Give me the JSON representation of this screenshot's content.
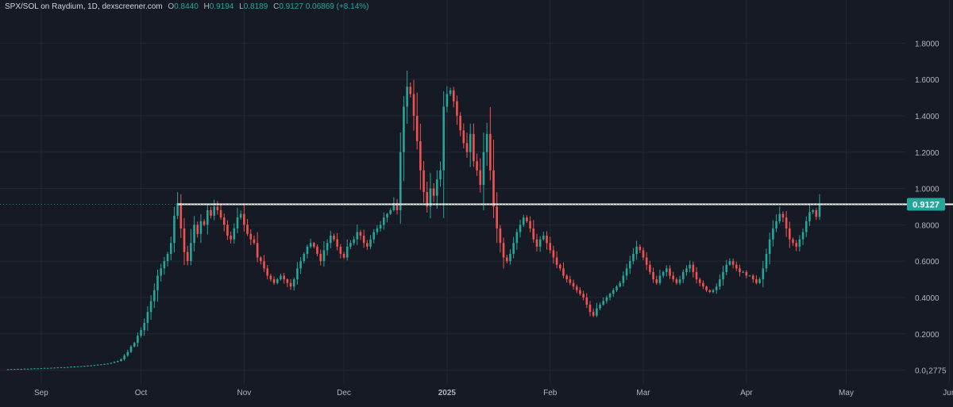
{
  "legend": {
    "symbol": "SPX/SOL on Raydium, 1D, dexscreener.com",
    "open_label": "O",
    "open": "0.8440",
    "high_label": "H",
    "high": "0.9194",
    "low_label": "L",
    "low": "0.8189",
    "close_label": "C",
    "close": "0.9127",
    "change": "0.06869 (+8.14%)"
  },
  "colors": {
    "background": "#161a25",
    "up": "#26a69a",
    "down": "#ef5350",
    "grid": "#232733",
    "axis_text": "#b2b5be",
    "price_badge": "#26a69a",
    "trendline": "#ffffff"
  },
  "chart_data": {
    "type": "candlestick",
    "y_ticks": [
      "1.8000",
      "1.6000",
      "1.4000",
      "1.2000",
      "1.0000",
      "0.8000",
      "0.6000",
      "0.4000",
      "0.2000",
      "0.0₁2775"
    ],
    "y_tick_values": [
      1.8,
      1.6,
      1.4,
      1.2,
      1.0,
      0.8,
      0.6,
      0.4,
      0.2,
      0.0
    ],
    "ylim": [
      -0.05,
      1.95
    ],
    "x_ticks": [
      "Sep",
      "Oct",
      "Nov",
      "Dec",
      "2025",
      "Feb",
      "Mar",
      "Apr",
      "May",
      "Jun"
    ],
    "x_tick_dates": [
      "2024-09-01",
      "2024-10-01",
      "2024-11-01",
      "2024-12-01",
      "2025-01-01",
      "2025-02-01",
      "2025-03-01",
      "2025-04-01",
      "2025-05-01",
      "2025-06-01"
    ],
    "first_candle_date": "2024-08-22",
    "closes": [
      0.005,
      0.006,
      0.006,
      0.007,
      0.007,
      0.008,
      0.008,
      0.009,
      0.01,
      0.01,
      0.011,
      0.012,
      0.012,
      0.013,
      0.014,
      0.015,
      0.016,
      0.016,
      0.017,
      0.019,
      0.02,
      0.021,
      0.022,
      0.023,
      0.025,
      0.026,
      0.028,
      0.03,
      0.032,
      0.034,
      0.036,
      0.04,
      0.045,
      0.05,
      0.06,
      0.08,
      0.1,
      0.13,
      0.15,
      0.19,
      0.22,
      0.26,
      0.32,
      0.38,
      0.44,
      0.52,
      0.56,
      0.6,
      0.64,
      0.7,
      0.85,
      0.92,
      0.78,
      0.65,
      0.6,
      0.7,
      0.8,
      0.75,
      0.82,
      0.8,
      0.88,
      0.85,
      0.9,
      0.88,
      0.84,
      0.8,
      0.74,
      0.72,
      0.78,
      0.84,
      0.86,
      0.8,
      0.75,
      0.72,
      0.7,
      0.62,
      0.6,
      0.56,
      0.52,
      0.5,
      0.48,
      0.5,
      0.52,
      0.5,
      0.48,
      0.46,
      0.5,
      0.56,
      0.6,
      0.64,
      0.68,
      0.7,
      0.68,
      0.64,
      0.6,
      0.66,
      0.7,
      0.74,
      0.72,
      0.68,
      0.64,
      0.62,
      0.68,
      0.7,
      0.72,
      0.76,
      0.74,
      0.7,
      0.68,
      0.72,
      0.76,
      0.78,
      0.8,
      0.84,
      0.86,
      0.88,
      0.92,
      0.88,
      1.2,
      1.45,
      1.56,
      1.52,
      1.4,
      1.26,
      1.1,
      0.98,
      0.9,
      1.0,
      0.96,
      1.05,
      1.1,
      1.45,
      1.52,
      1.54,
      1.48,
      1.4,
      1.32,
      1.25,
      1.2,
      1.3,
      1.15,
      1.1,
      1.02,
      1.2,
      1.3,
      1.1,
      0.9,
      0.78,
      0.7,
      0.62,
      0.6,
      0.64,
      0.7,
      0.76,
      0.8,
      0.84,
      0.82,
      0.78,
      0.72,
      0.68,
      0.72,
      0.74,
      0.7,
      0.66,
      0.62,
      0.58,
      0.56,
      0.52,
      0.5,
      0.48,
      0.46,
      0.44,
      0.42,
      0.4,
      0.36,
      0.32,
      0.3,
      0.34,
      0.36,
      0.38,
      0.4,
      0.42,
      0.44,
      0.46,
      0.48,
      0.52,
      0.56,
      0.6,
      0.64,
      0.68,
      0.66,
      0.62,
      0.58,
      0.54,
      0.5,
      0.48,
      0.52,
      0.54,
      0.56,
      0.52,
      0.5,
      0.48,
      0.5,
      0.54,
      0.56,
      0.58,
      0.54,
      0.5,
      0.48,
      0.46,
      0.44,
      0.43,
      0.44,
      0.46,
      0.5,
      0.54,
      0.58,
      0.6,
      0.58,
      0.56,
      0.54,
      0.54,
      0.52,
      0.52,
      0.5,
      0.48,
      0.5,
      0.56,
      0.64,
      0.72,
      0.78,
      0.82,
      0.86,
      0.84,
      0.78,
      0.72,
      0.7,
      0.68,
      0.72,
      0.76,
      0.82,
      0.87,
      0.88,
      0.844,
      0.9127
    ],
    "resistance_level": 0.9127,
    "resistance_start_date": "2024-10-12",
    "resistance_end_date": "2025-06-09",
    "grid": true,
    "last_price_label": "0.9127"
  }
}
